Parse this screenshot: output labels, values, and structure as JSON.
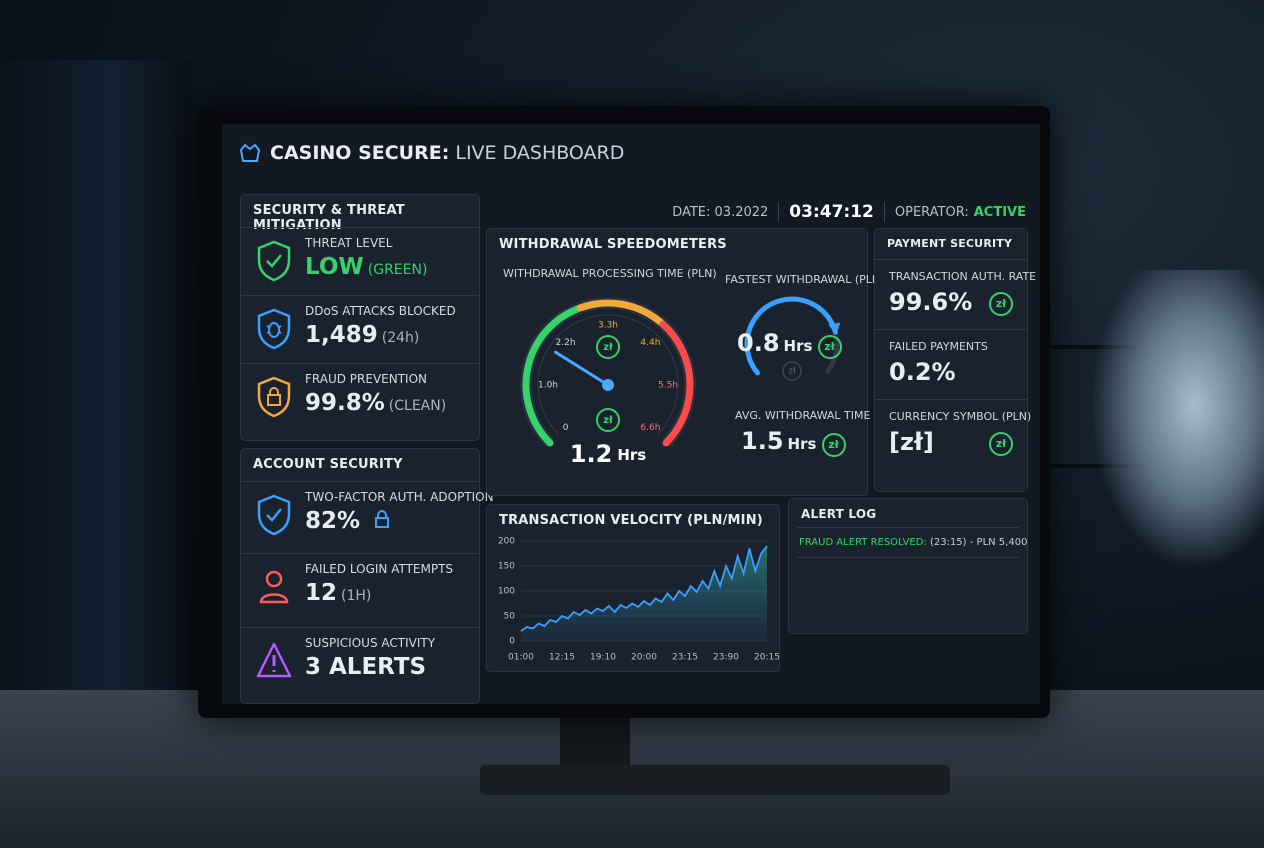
{
  "header": {
    "title_bold": "CASINO SECURE:",
    "title_rest": "LIVE DASHBOARD",
    "date": "DATE: 03.2022",
    "time": "03:47:12",
    "operator_label": "OPERATOR:",
    "operator_status": "ACTIVE"
  },
  "currency_icon": "zł",
  "threat_panel": {
    "title": "SECURITY & THREAT MITIGATION",
    "items": [
      {
        "label": "THREAT LEVEL",
        "value": "LOW",
        "note": "(GREEN)"
      },
      {
        "label": "DDoS ATTACKS BLOCKED",
        "value": "1,489",
        "note": "(24h)"
      },
      {
        "label": "FRAUD PREVENTION",
        "value": "99.8%",
        "note": "(CLEAN)"
      }
    ]
  },
  "account_panel": {
    "title": "ACCOUNT SECURITY",
    "items": [
      {
        "label": "TWO-FACTOR AUTH. ADOPTION",
        "value": "82%"
      },
      {
        "label": "FAILED LOGIN ATTEMPTS",
        "value": "12",
        "note": "(1H)"
      },
      {
        "label": "SUSPICIOUS ACTIVITY",
        "value": "3 ALERTS"
      }
    ]
  },
  "speedometers": {
    "title": "WITHDRAWAL SPEEDOMETERS",
    "gauge": {
      "title": "WITHDRAWAL PROCESSING TIME (PLN)",
      "ticks": [
        "0",
        "1.0h",
        "2.2h",
        "3.3h",
        "4.4h",
        "5.5h",
        "6.6h"
      ],
      "value": "1.2",
      "unit": "Hrs"
    },
    "fastest": {
      "title": "FASTEST WITHDRAWAL (PLN)",
      "value": "0.8",
      "unit": "Hrs"
    },
    "average": {
      "title": "AVG. WITHDRAWAL TIME",
      "value": "1.5",
      "unit": "Hrs"
    }
  },
  "payment_panel": {
    "title": "PAYMENT SECURITY",
    "items": [
      {
        "label": "TRANSACTION AUTH. RATE",
        "value": "99.6%"
      },
      {
        "label": "FAILED PAYMENTS",
        "value": "0.2%"
      },
      {
        "label": "CURRENCY SYMBOL (PLN)",
        "value": "[zł]"
      }
    ]
  },
  "alert_log": {
    "title": "ALERT LOG",
    "entries": [
      {
        "status": "FRAUD ALERT RESOLVED:",
        "detail": "(23:15) - PLN 5,400"
      }
    ]
  },
  "chart_data": {
    "type": "line",
    "title": "TRANSACTION VELOCITY (PLN/MIN)",
    "categories": [
      "01:00",
      null,
      null,
      null,
      null,
      null,
      null,
      "12:15",
      null,
      null,
      null,
      null,
      null,
      null,
      "19:10",
      null,
      null,
      null,
      null,
      null,
      null,
      "20:00",
      null,
      null,
      null,
      null,
      null,
      null,
      "23:15",
      null,
      null,
      null,
      null,
      null,
      null,
      "23:90",
      null,
      null,
      null,
      null,
      null,
      null,
      "20:15"
    ],
    "values": [
      20,
      28,
      25,
      35,
      30,
      42,
      38,
      50,
      45,
      58,
      52,
      62,
      55,
      65,
      60,
      70,
      58,
      72,
      66,
      75,
      68,
      80,
      72,
      85,
      78,
      95,
      82,
      100,
      90,
      110,
      98,
      120,
      105,
      140,
      110,
      150,
      125,
      170,
      135,
      185,
      140,
      175,
      190
    ],
    "color": "#3aa0ff",
    "ylim": [
      0,
      200
    ],
    "yticks": [
      0,
      50,
      100,
      150,
      200
    ],
    "grid": true
  }
}
